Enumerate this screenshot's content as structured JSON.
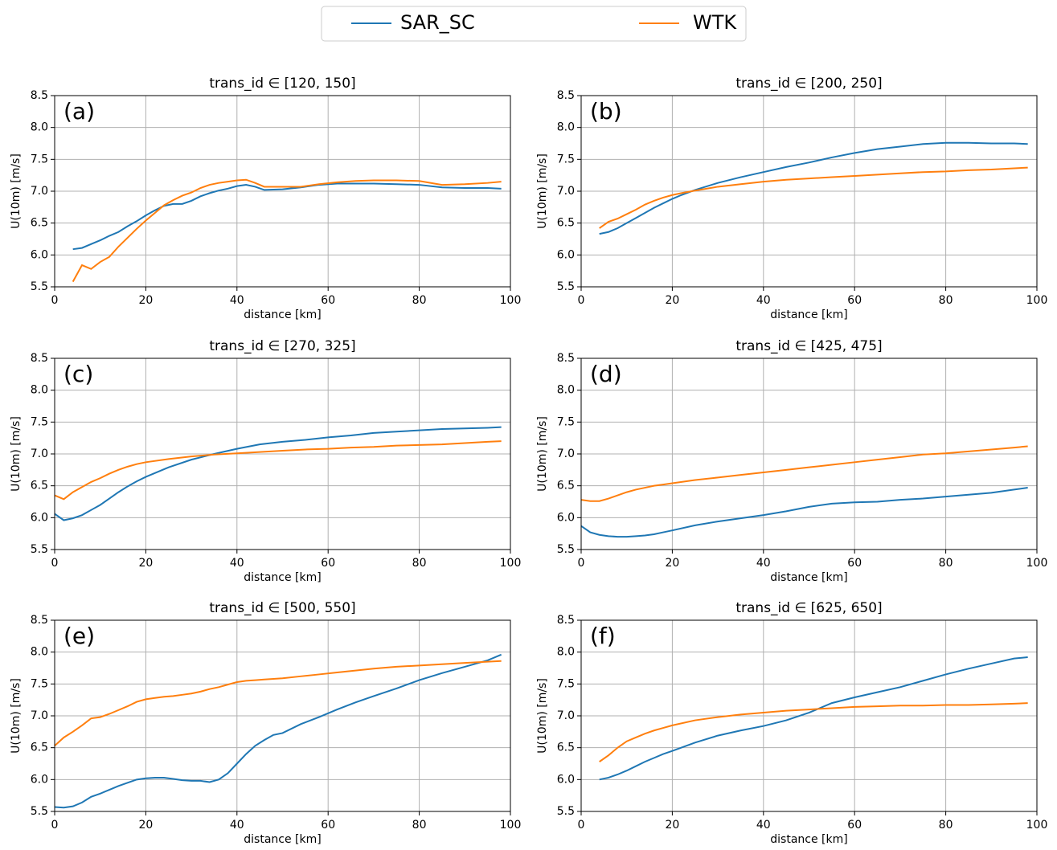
{
  "chart_data": [
    {
      "type": "line",
      "title": "trans_id ∈ [120, 150]",
      "panel_label": "(a)",
      "xlabel": "distance [km]",
      "ylabel": "U(10m) [m/s]",
      "grid": true,
      "xlim": [
        0,
        100
      ],
      "xticks": [
        0,
        20,
        40,
        60,
        80,
        100
      ],
      "ylim": [
        5.5,
        8.5
      ],
      "yticks": [
        5.5,
        {
          "value": 6,
          "label": "6.0"
        },
        6.5,
        {
          "value": 7,
          "label": "7.0"
        },
        7.5,
        {
          "value": 8,
          "label": "8.0"
        },
        8.5
      ],
      "x": [
        4,
        6,
        8,
        10,
        12,
        14,
        16,
        18,
        20,
        22,
        24,
        26,
        28,
        30,
        32,
        34,
        36,
        38,
        40,
        42,
        44,
        46,
        50,
        54,
        58,
        62,
        66,
        70,
        75,
        80,
        85,
        90,
        95,
        98
      ],
      "series": [
        {
          "name": "SAR_SC",
          "color": "#1f77b4",
          "values": [
            6.09,
            6.11,
            6.17,
            6.23,
            6.3,
            6.36,
            6.45,
            6.53,
            6.62,
            6.7,
            6.77,
            6.8,
            6.8,
            6.85,
            6.92,
            6.97,
            7.01,
            7.04,
            7.08,
            7.1,
            7.07,
            7.02,
            7.03,
            7.06,
            7.1,
            7.12,
            7.12,
            7.12,
            7.11,
            7.1,
            7.06,
            7.05,
            7.05,
            7.04
          ]
        },
        {
          "name": "WTK",
          "color": "#ff7f0e",
          "values": [
            5.58,
            5.84,
            5.78,
            5.89,
            5.97,
            6.13,
            6.27,
            6.41,
            6.54,
            6.66,
            6.78,
            6.86,
            6.93,
            6.98,
            7.05,
            7.1,
            7.13,
            7.15,
            7.17,
            7.18,
            7.13,
            7.07,
            7.07,
            7.07,
            7.11,
            7.14,
            7.16,
            7.17,
            7.17,
            7.16,
            7.1,
            7.11,
            7.13,
            7.15
          ]
        }
      ]
    },
    {
      "type": "line",
      "title": "trans_id ∈ [200, 250]",
      "panel_label": "(b)",
      "xlabel": "distance [km]",
      "ylabel": "U(10m) [m/s]",
      "grid": true,
      "xlim": [
        0,
        100
      ],
      "xticks": [
        0,
        20,
        40,
        60,
        80,
        100
      ],
      "ylim": [
        5.5,
        8.5
      ],
      "yticks": [
        5.5,
        {
          "value": 6,
          "label": "6.0"
        },
        6.5,
        {
          "value": 7,
          "label": "7.0"
        },
        7.5,
        {
          "value": 8,
          "label": "8.0"
        },
        8.5
      ],
      "x": [
        4,
        6,
        8,
        10,
        12,
        14,
        16,
        18,
        20,
        22,
        25,
        30,
        35,
        40,
        45,
        50,
        55,
        60,
        65,
        70,
        75,
        80,
        85,
        90,
        95,
        98
      ],
      "series": [
        {
          "name": "SAR_SC",
          "color": "#1f77b4",
          "values": [
            6.33,
            6.36,
            6.42,
            6.5,
            6.58,
            6.66,
            6.74,
            6.81,
            6.88,
            6.94,
            7.02,
            7.13,
            7.22,
            7.3,
            7.38,
            7.45,
            7.53,
            7.6,
            7.66,
            7.7,
            7.74,
            7.76,
            7.76,
            7.75,
            7.75,
            7.74
          ]
        },
        {
          "name": "WTK",
          "color": "#ff7f0e",
          "values": [
            6.42,
            6.52,
            6.57,
            6.64,
            6.71,
            6.79,
            6.85,
            6.9,
            6.94,
            6.97,
            7.01,
            7.07,
            7.11,
            7.15,
            7.18,
            7.2,
            7.22,
            7.24,
            7.26,
            7.28,
            7.3,
            7.31,
            7.33,
            7.34,
            7.36,
            7.37
          ]
        }
      ]
    },
    {
      "type": "line",
      "title": "trans_id ∈ [270, 325]",
      "panel_label": "(c)",
      "xlabel": "distance [km]",
      "ylabel": "U(10m) [m/s]",
      "grid": true,
      "xlim": [
        0,
        100
      ],
      "xticks": [
        0,
        20,
        40,
        60,
        80,
        100
      ],
      "ylim": [
        5.5,
        8.5
      ],
      "yticks": [
        5.5,
        {
          "value": 6,
          "label": "6.0"
        },
        6.5,
        {
          "value": 7,
          "label": "7.0"
        },
        7.5,
        {
          "value": 8,
          "label": "8.0"
        },
        8.5
      ],
      "x": [
        0,
        2,
        4,
        6,
        8,
        10,
        12,
        14,
        16,
        18,
        20,
        25,
        30,
        35,
        40,
        45,
        50,
        55,
        60,
        65,
        70,
        75,
        80,
        85,
        90,
        95,
        98
      ],
      "series": [
        {
          "name": "SAR_SC",
          "color": "#1f77b4",
          "values": [
            6.06,
            5.96,
            5.99,
            6.04,
            6.12,
            6.2,
            6.3,
            6.4,
            6.49,
            6.57,
            6.64,
            6.79,
            6.91,
            7.0,
            7.08,
            7.15,
            7.19,
            7.22,
            7.26,
            7.29,
            7.33,
            7.35,
            7.37,
            7.39,
            7.4,
            7.41,
            7.42
          ]
        },
        {
          "name": "WTK",
          "color": "#ff7f0e",
          "values": [
            6.35,
            6.29,
            6.4,
            6.48,
            6.56,
            6.62,
            6.69,
            6.75,
            6.8,
            6.84,
            6.87,
            6.92,
            6.96,
            6.99,
            7.01,
            7.03,
            7.05,
            7.07,
            7.08,
            7.1,
            7.11,
            7.13,
            7.14,
            7.15,
            7.17,
            7.19,
            7.2
          ]
        }
      ]
    },
    {
      "type": "line",
      "title": "trans_id ∈ [425, 475]",
      "panel_label": "(d)",
      "xlabel": "distance [km]",
      "ylabel": "U(10m) [m/s]",
      "grid": true,
      "xlim": [
        0,
        100
      ],
      "xticks": [
        0,
        20,
        40,
        60,
        80,
        100
      ],
      "ylim": [
        5.5,
        8.5
      ],
      "yticks": [
        5.5,
        {
          "value": 6,
          "label": "6.0"
        },
        6.5,
        {
          "value": 7,
          "label": "7.0"
        },
        7.5,
        {
          "value": 8,
          "label": "8.0"
        },
        8.5
      ],
      "x": [
        0,
        2,
        4,
        6,
        8,
        10,
        12,
        14,
        16,
        18,
        20,
        25,
        30,
        35,
        40,
        45,
        50,
        55,
        60,
        65,
        70,
        75,
        80,
        85,
        90,
        95,
        98
      ],
      "series": [
        {
          "name": "SAR_SC",
          "color": "#1f77b4",
          "values": [
            5.87,
            5.77,
            5.73,
            5.71,
            5.7,
            5.7,
            5.71,
            5.72,
            5.74,
            5.77,
            5.8,
            5.88,
            5.94,
            5.99,
            6.04,
            6.1,
            6.17,
            6.22,
            6.24,
            6.25,
            6.28,
            6.3,
            6.33,
            6.36,
            6.39,
            6.44,
            6.47
          ]
        },
        {
          "name": "WTK",
          "color": "#ff7f0e",
          "values": [
            6.28,
            6.26,
            6.26,
            6.3,
            6.35,
            6.4,
            6.44,
            6.47,
            6.5,
            6.52,
            6.54,
            6.59,
            6.63,
            6.67,
            6.71,
            6.75,
            6.79,
            6.83,
            6.87,
            6.91,
            6.95,
            6.99,
            7.01,
            7.04,
            7.07,
            7.1,
            7.12
          ]
        }
      ]
    },
    {
      "type": "line",
      "title": "trans_id ∈ [500, 550]",
      "panel_label": "(e)",
      "xlabel": "distance [km]",
      "ylabel": "U(10m) [m/s]",
      "grid": true,
      "xlim": [
        0,
        100
      ],
      "xticks": [
        0,
        20,
        40,
        60,
        80,
        100
      ],
      "ylim": [
        5.5,
        8.5
      ],
      "yticks": [
        5.5,
        {
          "value": 6,
          "label": "6.0"
        },
        6.5,
        {
          "value": 7,
          "label": "7.0"
        },
        7.5,
        {
          "value": 8,
          "label": "8.0"
        },
        8.5
      ],
      "x": [
        0,
        2,
        4,
        6,
        8,
        10,
        12,
        14,
        16,
        18,
        20,
        22,
        24,
        26,
        28,
        30,
        32,
        34,
        36,
        38,
        40,
        42,
        44,
        46,
        48,
        50,
        54,
        58,
        62,
        66,
        70,
        75,
        80,
        85,
        90,
        95,
        98
      ],
      "series": [
        {
          "name": "SAR_SC",
          "color": "#1f77b4",
          "values": [
            5.57,
            5.56,
            5.58,
            5.64,
            5.73,
            5.78,
            5.84,
            5.9,
            5.95,
            6.0,
            6.02,
            6.03,
            6.03,
            6.01,
            5.99,
            5.98,
            5.98,
            5.96,
            6.0,
            6.1,
            6.25,
            6.4,
            6.53,
            6.62,
            6.7,
            6.73,
            6.87,
            6.98,
            7.1,
            7.21,
            7.31,
            7.43,
            7.56,
            7.67,
            7.77,
            7.87,
            7.96
          ]
        },
        {
          "name": "WTK",
          "color": "#ff7f0e",
          "values": [
            6.53,
            6.66,
            6.75,
            6.85,
            6.96,
            6.98,
            7.03,
            7.09,
            7.15,
            7.22,
            7.26,
            7.28,
            7.3,
            7.31,
            7.33,
            7.35,
            7.38,
            7.42,
            7.45,
            7.49,
            7.53,
            7.55,
            7.56,
            7.57,
            7.58,
            7.59,
            7.62,
            7.65,
            7.68,
            7.71,
            7.74,
            7.77,
            7.79,
            7.81,
            7.83,
            7.85,
            7.86
          ]
        }
      ]
    },
    {
      "type": "line",
      "title": "trans_id ∈ [625, 650]",
      "panel_label": "(f)",
      "xlabel": "distance [km]",
      "ylabel": "U(10m) [m/s]",
      "grid": true,
      "xlim": [
        0,
        100
      ],
      "xticks": [
        0,
        20,
        40,
        60,
        80,
        100
      ],
      "ylim": [
        5.5,
        8.5
      ],
      "yticks": [
        5.5,
        {
          "value": 6,
          "label": "6.0"
        },
        6.5,
        {
          "value": 7,
          "label": "7.0"
        },
        7.5,
        {
          "value": 8,
          "label": "8.0"
        },
        8.5
      ],
      "x": [
        4,
        6,
        8,
        10,
        12,
        14,
        16,
        18,
        20,
        25,
        30,
        35,
        40,
        45,
        50,
        55,
        60,
        65,
        70,
        75,
        80,
        85,
        90,
        95,
        98
      ],
      "series": [
        {
          "name": "SAR_SC",
          "color": "#1f77b4",
          "values": [
            6.0,
            6.03,
            6.08,
            6.14,
            6.21,
            6.28,
            6.34,
            6.4,
            6.45,
            6.58,
            6.69,
            6.77,
            6.84,
            6.93,
            7.05,
            7.2,
            7.29,
            7.37,
            7.45,
            7.55,
            7.65,
            7.74,
            7.82,
            7.9,
            7.92
          ]
        },
        {
          "name": "WTK",
          "color": "#ff7f0e",
          "values": [
            6.28,
            6.38,
            6.5,
            6.6,
            6.66,
            6.72,
            6.77,
            6.81,
            6.85,
            6.93,
            6.98,
            7.02,
            7.05,
            7.08,
            7.1,
            7.12,
            7.14,
            7.15,
            7.16,
            7.16,
            7.17,
            7.17,
            7.18,
            7.19,
            7.2
          ]
        }
      ]
    }
  ]
}
